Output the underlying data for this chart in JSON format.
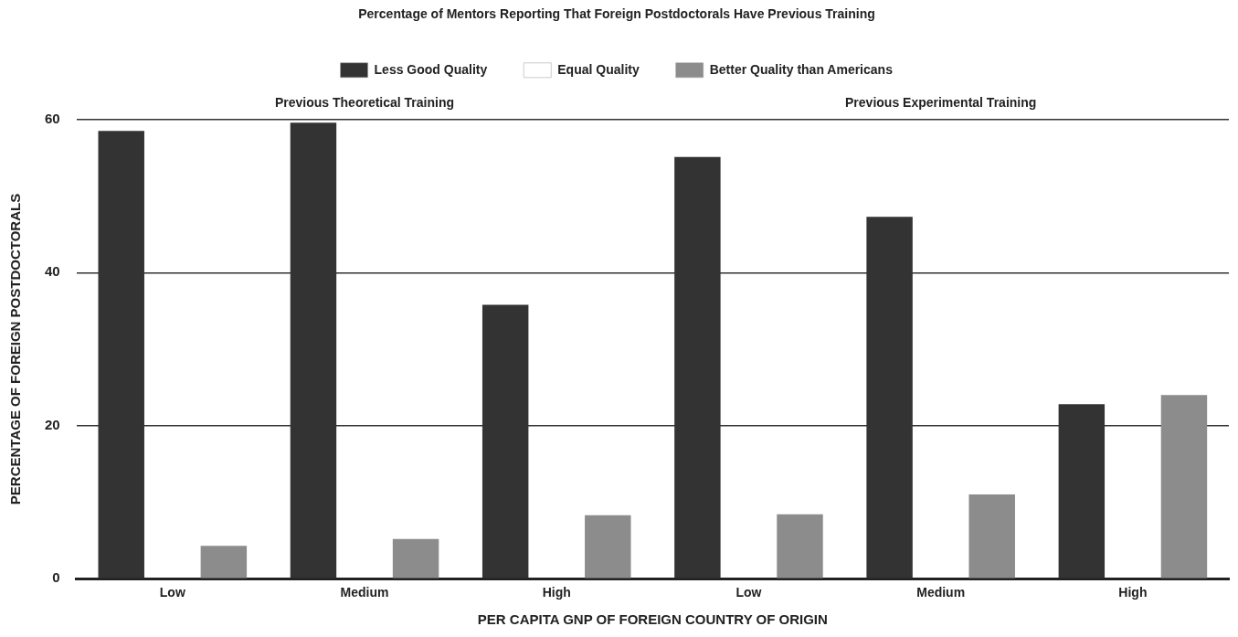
{
  "chart_data": {
    "type": "bar",
    "title": "Percentage of Mentors Reporting That Foreign Postdoctorals Have Previous Training",
    "categories": [
      "Low",
      "Medium",
      "High",
      "Low",
      "Medium",
      "High"
    ],
    "series": [
      {
        "name": "Less Good Quality",
        "color": "#333333",
        "values": [
          58.5,
          59.6,
          35.8,
          55.1,
          47.3,
          22.8
        ]
      },
      {
        "name": "Equal Quality",
        "color": "#ffffff",
        "values": [
          null,
          null,
          null,
          null,
          null,
          null
        ]
      },
      {
        "name": "Better Quality than Americans",
        "color": "#8c8c8c",
        "values": [
          4.3,
          5.2,
          8.3,
          8.4,
          11.0,
          24.0
        ]
      }
    ],
    "annotations": [
      "Previous Theoretical Training",
      "Previous Experimental Training"
    ],
    "xlabel": "PER CAPITA GNP OF FOREIGN COUNTRY OF ORIGIN",
    "ylabel": "PERCENTAGE OF FOREIGN POSTDOCTORALS",
    "ylim": [
      0,
      60
    ],
    "yticks": [
      0,
      20,
      40,
      60
    ],
    "grid": "y",
    "legend": "top"
  }
}
